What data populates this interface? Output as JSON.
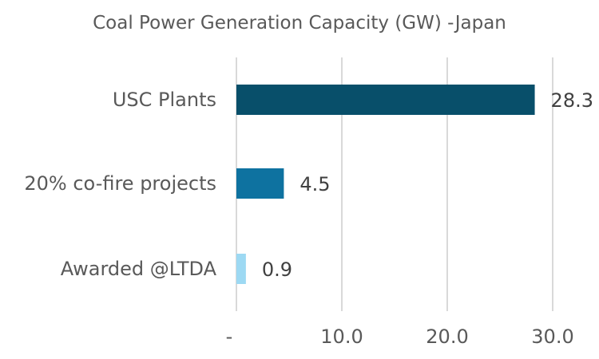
{
  "chart_data": {
    "type": "bar",
    "orientation": "horizontal",
    "title": "Coal Power Generation Capacity (GW) -Japan",
    "xlabel": "",
    "ylabel": "",
    "categories": [
      "USC Plants",
      "20% co-fire projects",
      "Awarded @LTDA"
    ],
    "values": [
      28.3,
      4.5,
      0.9
    ],
    "value_labels": [
      "28.3",
      "4.5",
      "0.9"
    ],
    "xlim": [
      0,
      30
    ],
    "xticks": [
      0,
      10,
      20,
      30
    ],
    "xtick_labels": [
      "-",
      "10.0",
      "20.0",
      "30.0"
    ],
    "grid": "vertical",
    "legend": "none",
    "colors": [
      "#084f6a",
      "#0e72a0",
      "#9dd9f3"
    ]
  }
}
